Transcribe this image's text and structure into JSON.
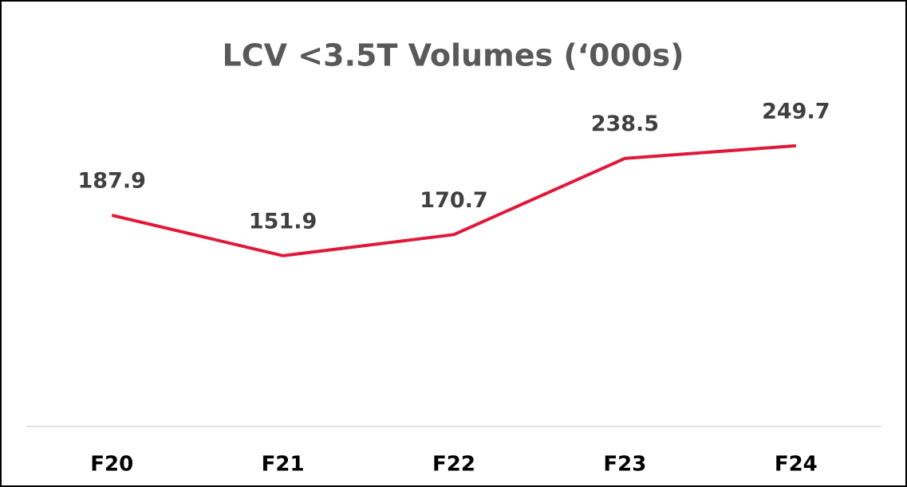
{
  "chart_data": {
    "type": "line",
    "title": "LCV <3.5T Volumes (‘000s)",
    "categories": [
      "F20",
      "F21",
      "F22",
      "F23",
      "F24"
    ],
    "values": [
      187.9,
      151.9,
      170.7,
      238.5,
      249.7
    ],
    "color": "#e0193a",
    "ylim": [
      0,
      300
    ]
  }
}
